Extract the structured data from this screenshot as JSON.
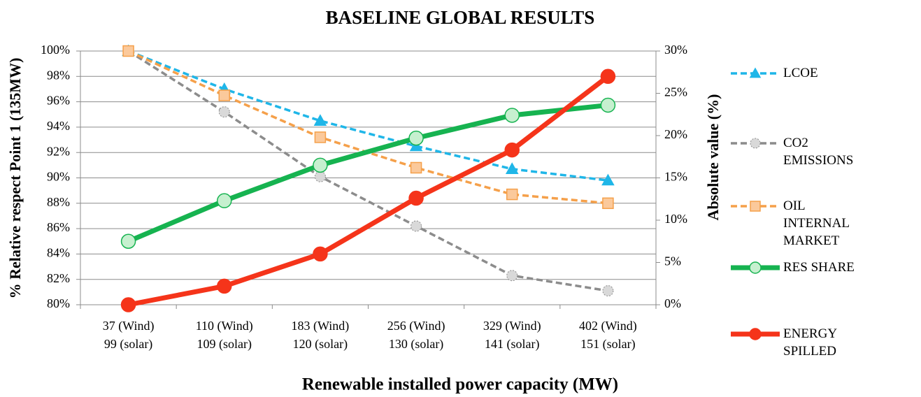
{
  "chart_data": {
    "type": "line",
    "title": "BASELINE GLOBAL RESULTS",
    "x_label": "Renewable installed power capacity (MW)",
    "y_label": "% Relative respect Point 1 (135MW)",
    "y2_label": "Absolute value (%)",
    "categories": [
      [
        "37 (Wind)",
        "99 (solar)"
      ],
      [
        "110 (Wind)",
        "109 (solar)"
      ],
      [
        "183 (Wind)",
        "120 (solar)"
      ],
      [
        "256 (Wind)",
        "130 (solar)"
      ],
      [
        "329 (Wind)",
        "141 (solar)"
      ],
      [
        "402 (Wind)",
        "151 (solar)"
      ]
    ],
    "ylim": [
      80,
      100
    ],
    "yticks": [
      {
        "value": 80,
        "label": "80%"
      },
      {
        "value": 82,
        "label": "82%"
      },
      {
        "value": 84,
        "label": "84%"
      },
      {
        "value": 86,
        "label": "86%"
      },
      {
        "value": 88,
        "label": "88%"
      },
      {
        "value": 90,
        "label": "90%"
      },
      {
        "value": 92,
        "label": "92%"
      },
      {
        "value": 94,
        "label": "94%"
      },
      {
        "value": 96,
        "label": "96%"
      },
      {
        "value": 98,
        "label": "98%"
      },
      {
        "value": 100,
        "label": "100%"
      }
    ],
    "y2lim": [
      0,
      30
    ],
    "y2ticks": [
      {
        "value": 0,
        "label": "0%"
      },
      {
        "value": 5,
        "label": "5%"
      },
      {
        "value": 10,
        "label": "10%"
      },
      {
        "value": 15,
        "label": "15%"
      },
      {
        "value": 20,
        "label": "20%"
      },
      {
        "value": 25,
        "label": "25%"
      },
      {
        "value": 30,
        "label": "30%"
      }
    ],
    "grid": true,
    "legend": "right",
    "series": [
      {
        "name": "LCOE",
        "color": "#1fb6e8",
        "marker": "triangle",
        "marker_fill": "#1fb6e8",
        "linestyle": "dashed",
        "values": [
          100,
          97,
          94.5,
          92.5,
          90.7,
          89.8
        ]
      },
      {
        "name": "CO2 EMISSIONS",
        "color": "#8c8c8c",
        "marker": "circle",
        "marker_fill": "#d9d9d9",
        "linestyle": "dashed",
        "values": [
          100,
          95.2,
          90.1,
          86.2,
          82.3,
          81.1
        ]
      },
      {
        "name": "OIL INTERNAL MARKET",
        "color": "#f5a04a",
        "marker": "square",
        "marker_fill": "#fbc99b",
        "linestyle": "dashed",
        "values": [
          100,
          96.5,
          93.2,
          90.8,
          88.7,
          88.0
        ]
      },
      {
        "name": "RES SHARE",
        "color": "#16b350",
        "marker": "circle",
        "marker_fill": "#c6f0cf",
        "linestyle": "solid",
        "axis": "y2",
        "values": [
          7.5,
          12.3,
          16.5,
          19.7,
          22.4,
          23.6
        ]
      },
      {
        "name": "ENERGY SPILLED",
        "color": "#f5341a",
        "marker": "circle",
        "marker_fill": "#f5341a",
        "linestyle": "solid",
        "axis": "y2",
        "values": [
          0,
          2.2,
          6.0,
          12.6,
          18.3,
          27.0
        ]
      }
    ]
  }
}
